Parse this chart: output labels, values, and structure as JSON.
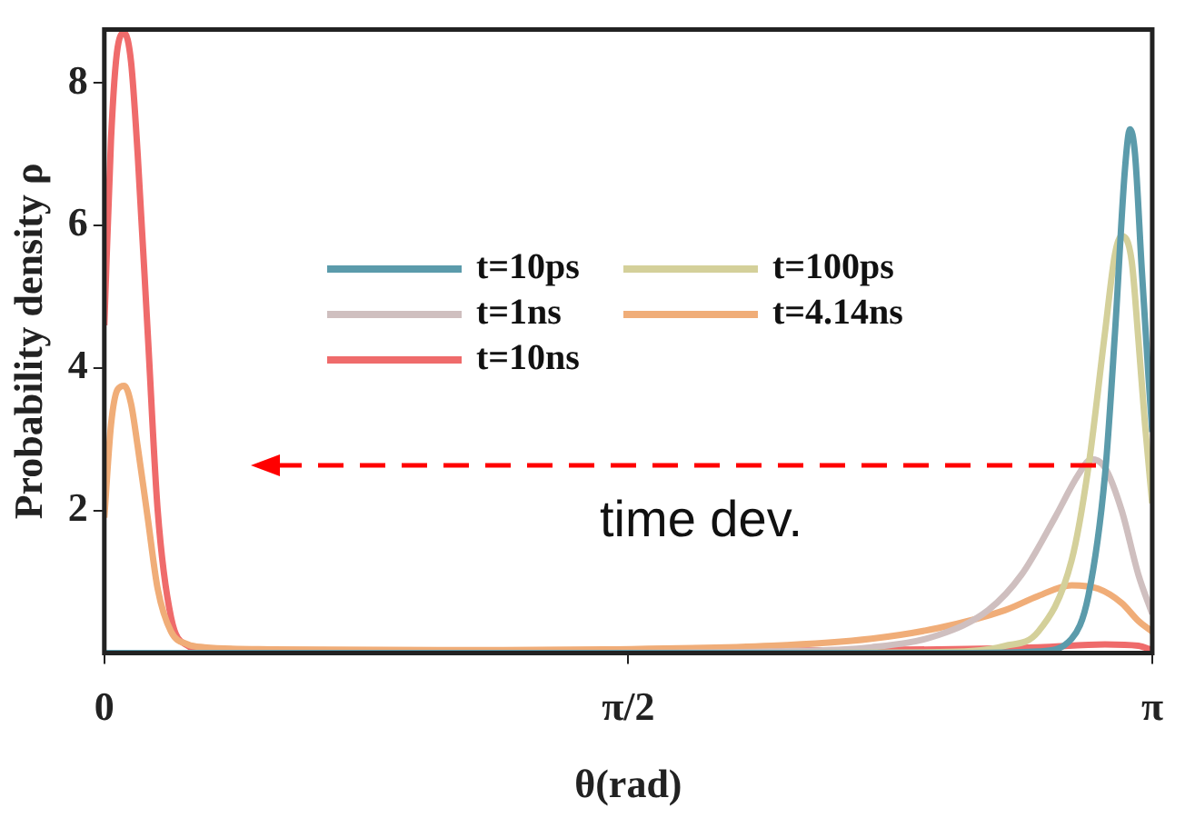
{
  "chart_data": {
    "type": "line",
    "xlabel": "θ(rad)",
    "ylabel": "Probability density ρ",
    "xlim": [
      0,
      3.1416
    ],
    "ylim": [
      0,
      8.75
    ],
    "xticks": [
      0,
      {
        "value": 1.5708,
        "label": "π/2"
      },
      {
        "value": 3.1416,
        "label": "π"
      }
    ],
    "yticks": [
      2,
      4,
      6,
      8
    ],
    "legend": "top",
    "marker": "none",
    "line_style": "solid",
    "annotations": [
      "time dev."
    ],
    "series": [
      {
        "name": "t=10ps",
        "color": "#5b9bab",
        "x": [
          0,
          1,
          2,
          2.6,
          2.8,
          2.9,
          2.95,
          3.0,
          3.03,
          3.06,
          3.075,
          3.09,
          3.11,
          3.13,
          3.1416
        ],
        "values": [
          0,
          0,
          0,
          0,
          0.02,
          0.2,
          0.8,
          2.5,
          4.5,
          6.8,
          7.35,
          7.0,
          5.4,
          3.9,
          3.1
        ]
      },
      {
        "name": "t=100ps",
        "color": "#d4d09a",
        "x": [
          0,
          1,
          2,
          2.5,
          2.7,
          2.8,
          2.9,
          2.95,
          3.0,
          3.03,
          3.05,
          3.08,
          3.1,
          3.12,
          3.1416
        ],
        "values": [
          0,
          0,
          0,
          0.01,
          0.1,
          0.3,
          1.3,
          2.6,
          4.5,
          5.6,
          5.85,
          5.5,
          4.4,
          3.2,
          2.1
        ]
      },
      {
        "name": "t=1ns",
        "color": "#cfbfbf",
        "x": [
          0,
          0.5,
          1,
          1.5,
          2,
          2.3,
          2.5,
          2.65,
          2.75,
          2.85,
          2.92,
          2.96,
          3.0,
          3.05,
          3.1,
          3.1416
        ],
        "values": [
          0,
          0,
          0,
          0,
          0.02,
          0.08,
          0.25,
          0.6,
          1.1,
          1.9,
          2.5,
          2.72,
          2.6,
          2.0,
          1.1,
          0.55
        ]
      },
      {
        "name": "t=4.14ns",
        "color": "#f0ad78",
        "x": [
          0,
          0.02,
          0.04,
          0.06,
          0.08,
          0.1,
          0.13,
          0.16,
          0.2,
          0.25,
          0.3,
          0.5,
          1,
          1.5,
          2,
          2.3,
          2.5,
          2.7,
          2.8,
          2.9,
          2.98,
          3.05,
          3.1,
          3.1416
        ],
        "values": [
          1.9,
          3.2,
          3.7,
          3.75,
          3.5,
          2.9,
          1.9,
          0.9,
          0.3,
          0.12,
          0.08,
          0.05,
          0.04,
          0.05,
          0.1,
          0.2,
          0.35,
          0.6,
          0.8,
          0.95,
          0.9,
          0.7,
          0.45,
          0.3
        ]
      },
      {
        "name": "t=10ns",
        "color": "#ef6b6b",
        "x": [
          0,
          0.02,
          0.04,
          0.06,
          0.08,
          0.1,
          0.13,
          0.16,
          0.2,
          0.25,
          0.3,
          0.5,
          1,
          1.5,
          2,
          2.5,
          2.8,
          3.0,
          3.1,
          3.1416
        ],
        "values": [
          4.6,
          7.2,
          8.5,
          8.7,
          8.3,
          7.0,
          4.5,
          2.0,
          0.5,
          0.1,
          0.04,
          0.02,
          0.02,
          0.02,
          0.03,
          0.05,
          0.08,
          0.12,
          0.1,
          0.04
        ]
      }
    ]
  }
}
